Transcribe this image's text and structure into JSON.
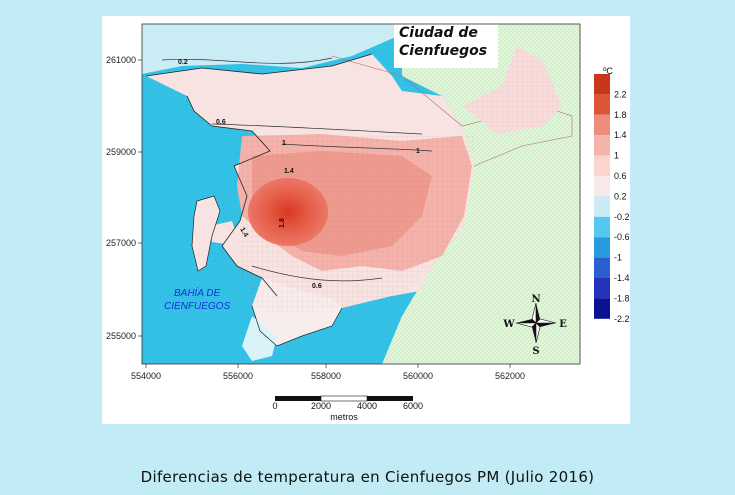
{
  "caption": "Diferencias de temperatura en Cienfuegos PM (Julio 2016)",
  "map": {
    "city_label_line1": "Ciudad de",
    "city_label_line2": "Cienfuegos",
    "bay_label_line1": "BAHÍA DE",
    "bay_label_line2": "CIENFUEGOS",
    "x_ticks": [
      "554000",
      "556000",
      "558000",
      "560000",
      "562000"
    ],
    "y_ticks": [
      "261000",
      "259000",
      "257000",
      "255000"
    ],
    "isotherm_labels": [
      "0.2",
      "0.6",
      "1",
      "1",
      "1.4",
      "1.8",
      "1.4",
      "0.6"
    ]
  },
  "legend": {
    "unit": "ºC",
    "ticks": [
      "2.2",
      "1.8",
      "1.4",
      "1",
      "0.6",
      "0.2",
      "-0.2",
      "-0.6",
      "-1",
      "-1.4",
      "-1.8",
      "-2.2"
    ],
    "colors": [
      "#c8371a",
      "#dd5535",
      "#ef8b7a",
      "#f5b4ab",
      "#fbd4d0",
      "#f8e8e8",
      "#cbeaf5",
      "#55c8f0",
      "#2a9ae0",
      "#2b5fd0",
      "#2434b8",
      "#0a1290"
    ]
  },
  "compass": {
    "n": "N",
    "s": "S",
    "e": "E",
    "w": "W"
  },
  "scale_bar": {
    "labels": [
      "0",
      "2000",
      "4000",
      "6000"
    ],
    "unit": "metros"
  },
  "colors": {
    "sea": "#33c1e6",
    "land_green": "#dff7d9",
    "warm_light": "#f8d0cc",
    "warm_mid": "#f09c90",
    "warm_core": "#e2503c",
    "background": "#c1ecf5"
  }
}
